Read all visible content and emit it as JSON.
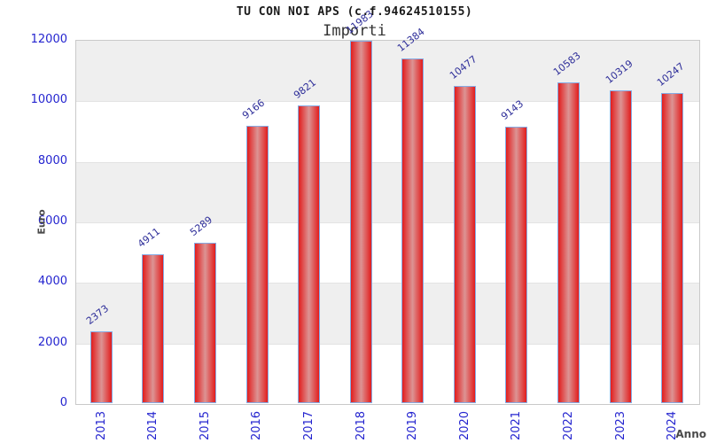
{
  "chart_data": {
    "type": "bar",
    "title": "TU CON NOI APS (c.f.94624510155)",
    "subtitle": "Importi",
    "xlabel": "Anno",
    "ylabel": "Euro",
    "categories": [
      "2013",
      "2014",
      "2015",
      "2016",
      "2017",
      "2018",
      "2019",
      "2020",
      "2021",
      "2022",
      "2023",
      "2024"
    ],
    "values": [
      2373,
      4911,
      5289,
      9166,
      9821,
      11983,
      11384,
      10477,
      9143,
      10583,
      10319,
      10247
    ],
    "ylim": [
      0,
      12000
    ],
    "yticks": [
      0,
      2000,
      4000,
      6000,
      8000,
      10000,
      12000
    ],
    "grid": "horizontal",
    "band_fill": "alternating-gray",
    "legend": "none",
    "value_labels": "rotated-above-bars",
    "colors": {
      "bar_fill_edge": "#e21d1d",
      "bar_fill_center": "#dc9494",
      "bar_border": "#85abe4",
      "axis_tick_label": "#2424cf",
      "value_label": "#2d2d99",
      "axis_title": "#4a4a4a",
      "band_gray": "#efefef",
      "gridline": "#e3e3e3",
      "plot_border": "#c9c9c9",
      "background": "#ffffff"
    }
  }
}
